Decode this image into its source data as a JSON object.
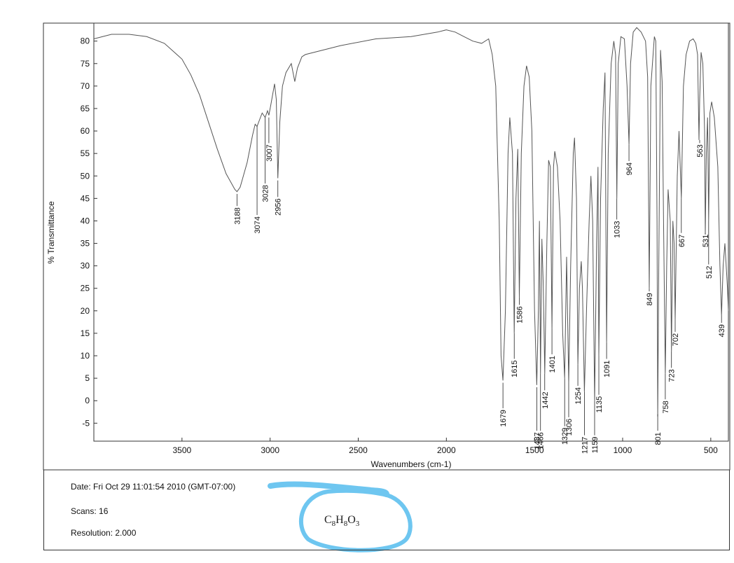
{
  "chart_data": {
    "type": "line",
    "title": "",
    "xlabel": "Wavenumbers (cm-1)",
    "ylabel": "% Transmittance",
    "xlim": [
      4000,
      400
    ],
    "ylim": [
      -9,
      84
    ],
    "x_ticks": [
      3500,
      3000,
      2500,
      2000,
      1500,
      1000,
      500
    ],
    "y_ticks": [
      80,
      75,
      70,
      65,
      60,
      55,
      50,
      45,
      40,
      35,
      30,
      25,
      20,
      15,
      10,
      5,
      0,
      -5
    ],
    "grid": false,
    "series": [
      {
        "points": [
          [
            4000,
            80.5
          ],
          [
            3900,
            81.5
          ],
          [
            3800,
            81.5
          ],
          [
            3700,
            81.0
          ],
          [
            3600,
            79.5
          ],
          [
            3500,
            76.0
          ],
          [
            3450,
            72.5
          ],
          [
            3400,
            68.0
          ],
          [
            3350,
            62.0
          ],
          [
            3300,
            56.0
          ],
          [
            3250,
            50.5
          ],
          [
            3200,
            47.0
          ],
          [
            3188,
            46.5
          ],
          [
            3170,
            47.5
          ],
          [
            3130,
            53.0
          ],
          [
            3100,
            59.0
          ],
          [
            3085,
            61.5
          ],
          [
            3074,
            61.0
          ],
          [
            3060,
            62.5
          ],
          [
            3045,
            64.0
          ],
          [
            3028,
            63.0
          ],
          [
            3015,
            64.5
          ],
          [
            3007,
            63.5
          ],
          [
            2995,
            66.0
          ],
          [
            2975,
            70.5
          ],
          [
            2965,
            67.0
          ],
          [
            2956,
            49.5
          ],
          [
            2945,
            62.0
          ],
          [
            2930,
            70.0
          ],
          [
            2910,
            73.0
          ],
          [
            2880,
            75.0
          ],
          [
            2860,
            71.0
          ],
          [
            2845,
            74.0
          ],
          [
            2820,
            76.5
          ],
          [
            2800,
            77.0
          ],
          [
            2600,
            79.0
          ],
          [
            2400,
            80.5
          ],
          [
            2200,
            81.0
          ],
          [
            2050,
            82.0
          ],
          [
            2000,
            82.5
          ],
          [
            1950,
            82.0
          ],
          [
            1900,
            81.0
          ],
          [
            1850,
            80.0
          ],
          [
            1800,
            79.5
          ],
          [
            1760,
            80.5
          ],
          [
            1740,
            77.0
          ],
          [
            1720,
            70.0
          ],
          [
            1700,
            40.0
          ],
          [
            1690,
            10.0
          ],
          [
            1679,
            4.5
          ],
          [
            1665,
            20.0
          ],
          [
            1650,
            55.0
          ],
          [
            1640,
            63.0
          ],
          [
            1625,
            55.0
          ],
          [
            1615,
            15.0
          ],
          [
            1605,
            45.0
          ],
          [
            1595,
            56.0
          ],
          [
            1586,
            23.0
          ],
          [
            1575,
            55.0
          ],
          [
            1560,
            70.0
          ],
          [
            1545,
            74.5
          ],
          [
            1530,
            72.0
          ],
          [
            1515,
            60.0
          ],
          [
            1500,
            20.0
          ],
          [
            1487,
            3.5
          ],
          [
            1478,
            20.0
          ],
          [
            1472,
            40.0
          ],
          [
            1466,
            6.0
          ],
          [
            1458,
            36.0
          ],
          [
            1450,
            25.0
          ],
          [
            1442,
            6.0
          ],
          [
            1430,
            35.0
          ],
          [
            1420,
            53.5
          ],
          [
            1410,
            52.0
          ],
          [
            1401,
            16.0
          ],
          [
            1392,
            52.0
          ],
          [
            1385,
            55.5
          ],
          [
            1370,
            52.0
          ],
          [
            1355,
            40.0
          ],
          [
            1340,
            15.0
          ],
          [
            1329,
            5.0
          ],
          [
            1318,
            32.0
          ],
          [
            1306,
            4.0
          ],
          [
            1295,
            30.0
          ],
          [
            1280,
            55.0
          ],
          [
            1273,
            58.5
          ],
          [
            1262,
            45.0
          ],
          [
            1254,
            8.0
          ],
          [
            1245,
            25.0
          ],
          [
            1235,
            31.0
          ],
          [
            1228,
            25.0
          ],
          [
            1217,
            2.0
          ],
          [
            1205,
            20.0
          ],
          [
            1190,
            40.0
          ],
          [
            1180,
            50.0
          ],
          [
            1170,
            40.0
          ],
          [
            1159,
            0.0
          ],
          [
            1148,
            35.0
          ],
          [
            1140,
            52.0
          ],
          [
            1135,
            10.0
          ],
          [
            1125,
            45.0
          ],
          [
            1110,
            65.0
          ],
          [
            1100,
            73.0
          ],
          [
            1091,
            13.0
          ],
          [
            1082,
            55.0
          ],
          [
            1065,
            75.0
          ],
          [
            1050,
            80.0
          ],
          [
            1040,
            77.0
          ],
          [
            1033,
            45.0
          ],
          [
            1025,
            75.0
          ],
          [
            1010,
            81.0
          ],
          [
            990,
            80.5
          ],
          [
            975,
            70.0
          ],
          [
            964,
            57.0
          ],
          [
            955,
            75.0
          ],
          [
            940,
            82.0
          ],
          [
            920,
            83.0
          ],
          [
            895,
            82.0
          ],
          [
            870,
            80.0
          ],
          [
            858,
            72.0
          ],
          [
            849,
            25.0
          ],
          [
            840,
            70.0
          ],
          [
            820,
            81.0
          ],
          [
            812,
            80.0
          ],
          [
            805,
            40.0
          ],
          [
            801,
            -3.5
          ],
          [
            795,
            30.0
          ],
          [
            785,
            78.0
          ],
          [
            776,
            71.0
          ],
          [
            768,
            40.0
          ],
          [
            758,
            6.0
          ],
          [
            750,
            30.0
          ],
          [
            742,
            47.0
          ],
          [
            730,
            40.0
          ],
          [
            723,
            11.0
          ],
          [
            715,
            40.0
          ],
          [
            708,
            35.0
          ],
          [
            702,
            18.0
          ],
          [
            690,
            50.0
          ],
          [
            680,
            60.0
          ],
          [
            667,
            45.0
          ],
          [
            655,
            70.0
          ],
          [
            640,
            77.0
          ],
          [
            620,
            80.0
          ],
          [
            600,
            80.5
          ],
          [
            585,
            79.5
          ],
          [
            575,
            77.0
          ],
          [
            567,
            58.0
          ],
          [
            563,
            67.0
          ],
          [
            555,
            77.5
          ],
          [
            545,
            75.0
          ],
          [
            535,
            60.0
          ],
          [
            531,
            37.0
          ],
          [
            525,
            55.0
          ],
          [
            518,
            63.0
          ],
          [
            512,
            40.0
          ],
          [
            505,
            64.0
          ],
          [
            495,
            66.5
          ],
          [
            480,
            63.0
          ],
          [
            460,
            52.0
          ],
          [
            448,
            30.0
          ],
          [
            439,
            19.0
          ],
          [
            430,
            30.0
          ],
          [
            420,
            35.0
          ],
          [
            405,
            25.0
          ],
          [
            400,
            20.0
          ]
        ]
      }
    ],
    "peak_labels": [
      {
        "x": 3188,
        "label": "3188",
        "y_top": 46,
        "y_text": 43
      },
      {
        "x": 3074,
        "label": "3074",
        "y_top": 61,
        "y_text": 41
      },
      {
        "x": 3028,
        "label": "3028",
        "y_top": 63,
        "y_text": 48
      },
      {
        "x": 3007,
        "label": "3007",
        "y_top": 63,
        "y_text": 57
      },
      {
        "x": 2956,
        "label": "2956",
        "y_top": 49,
        "y_text": 45
      },
      {
        "x": 1679,
        "label": "1679",
        "y_top": 4,
        "y_text": -2
      },
      {
        "x": 1615,
        "label": "1615",
        "y_top": 15,
        "y_text": 9
      },
      {
        "x": 1586,
        "label": "1586",
        "y_top": 23,
        "y_text": 21
      },
      {
        "x": 1487,
        "label": "1487",
        "y_top": 3,
        "y_text": -7
      },
      {
        "x": 1466,
        "label": "1466",
        "y_top": 6,
        "y_text": -7
      },
      {
        "x": 1442,
        "label": "1442",
        "y_top": 6,
        "y_text": 2
      },
      {
        "x": 1401,
        "label": "1401",
        "y_top": 16,
        "y_text": 10
      },
      {
        "x": 1329,
        "label": "1329",
        "y_top": 5,
        "y_text": -6
      },
      {
        "x": 1306,
        "label": "1306",
        "y_top": 4,
        "y_text": -4
      },
      {
        "x": 1254,
        "label": "1254",
        "y_top": 8,
        "y_text": 3
      },
      {
        "x": 1217,
        "label": "1217",
        "y_top": 2,
        "y_text": -8
      },
      {
        "x": 1159,
        "label": "1159",
        "y_top": 0,
        "y_text": -8
      },
      {
        "x": 1135,
        "label": "1135",
        "y_top": 10,
        "y_text": 1
      },
      {
        "x": 1091,
        "label": "1091",
        "y_top": 13,
        "y_text": 9
      },
      {
        "x": 1033,
        "label": "1033",
        "y_top": 45,
        "y_text": 40
      },
      {
        "x": 964,
        "label": "964",
        "y_top": 57,
        "y_text": 53
      },
      {
        "x": 849,
        "label": "849",
        "y_top": 25,
        "y_text": 24
      },
      {
        "x": 801,
        "label": "801",
        "y_top": -3,
        "y_text": -7
      },
      {
        "x": 758,
        "label": "758",
        "y_top": 6,
        "y_text": 0
      },
      {
        "x": 723,
        "label": "723",
        "y_top": 11,
        "y_text": 7
      },
      {
        "x": 702,
        "label": "702",
        "y_top": 18,
        "y_text": 15
      },
      {
        "x": 667,
        "label": "667",
        "y_top": 45,
        "y_text": 37
      },
      {
        "x": 563,
        "label": "563",
        "y_top": 58,
        "y_text": 57
      },
      {
        "x": 531,
        "label": "531",
        "y_top": 37,
        "y_text": 37
      },
      {
        "x": 512,
        "label": "512",
        "y_top": 40,
        "y_text": 30
      },
      {
        "x": 439,
        "label": "439",
        "y_top": 19,
        "y_text": 17
      }
    ],
    "line_color": "#555555"
  },
  "info": {
    "date": "Date: Fri Oct 29 11:01:54 2010 (GMT-07:00)",
    "scans": "Scans: 16",
    "resolution": "Resolution:  2.000"
  },
  "annotation": {
    "formula_c": "C",
    "formula_c_sub": "8",
    "formula_h": "H",
    "formula_h_sub": "8",
    "formula_o": "O",
    "formula_o_sub": "3",
    "highlight_color": "#6ec6f0"
  }
}
